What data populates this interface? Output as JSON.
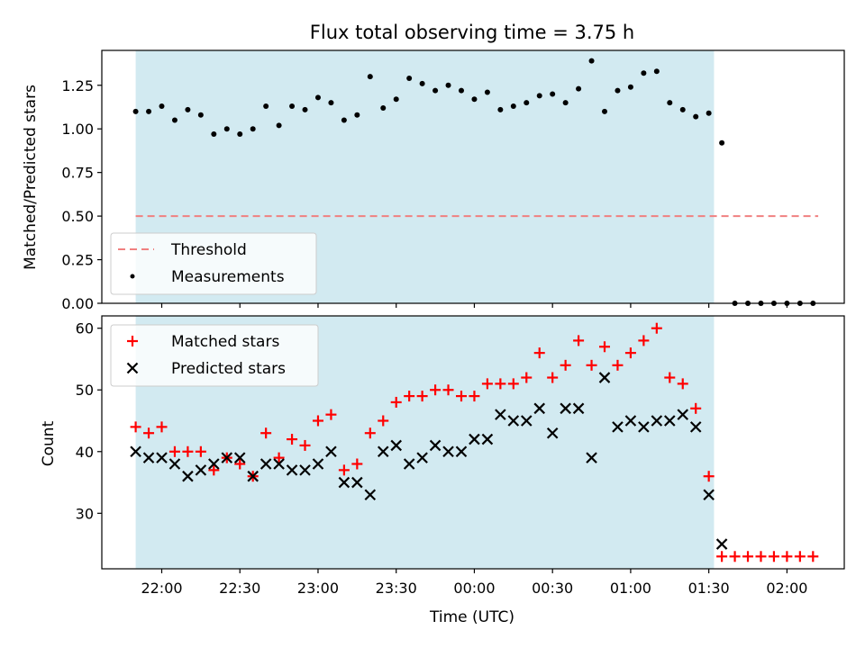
{
  "figure": {
    "title": "Flux total observing time = 3.75 h",
    "xlabel": "Time (UTC)",
    "x_tick_labels": [
      "22:00",
      "22:30",
      "23:00",
      "23:30",
      "00:00",
      "00:30",
      "01:00",
      "01:30",
      "02:00"
    ]
  },
  "colors": {
    "shade": "#add8e6",
    "threshold": "#f08080",
    "measurement": "#000000",
    "matched": "#ff0000",
    "predicted": "#000000"
  },
  "chart_data": [
    {
      "type": "scatter",
      "panel": "top",
      "title": "Flux total observing time = 3.75 h",
      "ylabel": "Matched/Predicted stars",
      "y_tick_labels": [
        "0.00",
        "0.25",
        "0.50",
        "0.75",
        "1.00",
        "1.25"
      ],
      "ylim": [
        0,
        1.45
      ],
      "xlim": [
        "21:37",
        "02:22"
      ],
      "grid": false,
      "legend_position": "lower-left",
      "shaded_span": [
        "21:50",
        "01:32"
      ],
      "threshold": {
        "name": "Threshold",
        "value": 0.5,
        "x_range": [
          "21:50",
          "02:12"
        ],
        "style": "dashed"
      },
      "series": [
        {
          "name": "Measurements",
          "x": [
            "21:50",
            "21:55",
            "22:00",
            "22:05",
            "22:10",
            "22:15",
            "22:20",
            "22:25",
            "22:30",
            "22:35",
            "22:40",
            "22:45",
            "22:50",
            "22:55",
            "23:00",
            "23:05",
            "23:10",
            "23:15",
            "23:20",
            "23:25",
            "23:30",
            "23:35",
            "23:40",
            "23:45",
            "23:50",
            "23:55",
            "00:00",
            "00:05",
            "00:10",
            "00:15",
            "00:20",
            "00:25",
            "00:30",
            "00:35",
            "00:40",
            "00:45",
            "00:50",
            "00:55",
            "01:00",
            "01:05",
            "01:10",
            "01:15",
            "01:20",
            "01:25",
            "01:30",
            "01:35",
            "01:40",
            "01:45",
            "01:50",
            "01:55",
            "02:00",
            "02:05",
            "02:10"
          ],
          "values": [
            1.1,
            1.1,
            1.13,
            1.05,
            1.11,
            1.08,
            0.97,
            1.0,
            0.97,
            1.0,
            1.13,
            1.02,
            1.13,
            1.11,
            1.18,
            1.15,
            1.05,
            1.08,
            1.3,
            1.12,
            1.17,
            1.29,
            1.26,
            1.22,
            1.25,
            1.22,
            1.17,
            1.21,
            1.11,
            1.13,
            1.15,
            1.19,
            1.2,
            1.15,
            1.23,
            1.39,
            1.1,
            1.22,
            1.24,
            1.32,
            1.33,
            1.15,
            1.11,
            1.07,
            1.09,
            0.92,
            0.0,
            0.0,
            0.0,
            0.0,
            0.0,
            0.0,
            0.0
          ],
          "marker": "dot"
        }
      ]
    },
    {
      "type": "scatter",
      "panel": "bottom",
      "ylabel": "Count",
      "y_tick_labels": [
        "30",
        "40",
        "50",
        "60"
      ],
      "ylim": [
        21,
        62
      ],
      "xlim": [
        "21:37",
        "02:22"
      ],
      "grid": false,
      "legend_position": "top-left",
      "shaded_span": [
        "21:50",
        "01:32"
      ],
      "series": [
        {
          "name": "Matched stars",
          "marker": "plus",
          "x": [
            "21:50",
            "21:55",
            "22:00",
            "22:05",
            "22:10",
            "22:15",
            "22:20",
            "22:25",
            "22:30",
            "22:35",
            "22:40",
            "22:45",
            "22:50",
            "22:55",
            "23:00",
            "23:05",
            "23:10",
            "23:15",
            "23:20",
            "23:25",
            "23:30",
            "23:35",
            "23:40",
            "23:45",
            "23:50",
            "23:55",
            "00:00",
            "00:05",
            "00:10",
            "00:15",
            "00:20",
            "00:25",
            "00:30",
            "00:35",
            "00:40",
            "00:45",
            "00:50",
            "00:55",
            "01:00",
            "01:05",
            "01:10",
            "01:15",
            "01:20",
            "01:25",
            "01:30",
            "01:35",
            "01:40",
            "01:45",
            "01:50",
            "01:55",
            "02:00",
            "02:05",
            "02:10"
          ],
          "values": [
            44,
            43,
            44,
            40,
            40,
            40,
            37,
            39,
            38,
            36,
            43,
            39,
            42,
            41,
            45,
            46,
            37,
            38,
            43,
            45,
            48,
            49,
            49,
            50,
            50,
            49,
            49,
            51,
            51,
            51,
            52,
            56,
            52,
            54,
            58,
            54,
            57,
            54,
            56,
            58,
            60,
            52,
            51,
            47,
            36,
            23,
            23,
            23,
            23,
            23,
            23,
            23,
            23
          ]
        },
        {
          "name": "Predicted stars",
          "marker": "x",
          "x": [
            "21:50",
            "21:55",
            "22:00",
            "22:05",
            "22:10",
            "22:15",
            "22:20",
            "22:25",
            "22:30",
            "22:35",
            "22:40",
            "22:45",
            "22:50",
            "22:55",
            "23:00",
            "23:05",
            "23:10",
            "23:15",
            "23:20",
            "23:25",
            "23:30",
            "23:35",
            "23:40",
            "23:45",
            "23:50",
            "23:55",
            "00:00",
            "00:05",
            "00:10",
            "00:15",
            "00:20",
            "00:25",
            "00:30",
            "00:35",
            "00:40",
            "00:45",
            "00:50",
            "00:55",
            "01:00",
            "01:05",
            "01:10",
            "01:15",
            "01:20",
            "01:25",
            "01:30",
            "01:35"
          ],
          "values": [
            40,
            39,
            39,
            38,
            36,
            37,
            38,
            39,
            39,
            36,
            38,
            38,
            37,
            37,
            38,
            40,
            35,
            35,
            33,
            40,
            41,
            38,
            39,
            41,
            40,
            40,
            42,
            42,
            46,
            45,
            45,
            47,
            43,
            47,
            47,
            39,
            52,
            44,
            45,
            44,
            45,
            45,
            46,
            44,
            33,
            25
          ]
        }
      ]
    }
  ]
}
